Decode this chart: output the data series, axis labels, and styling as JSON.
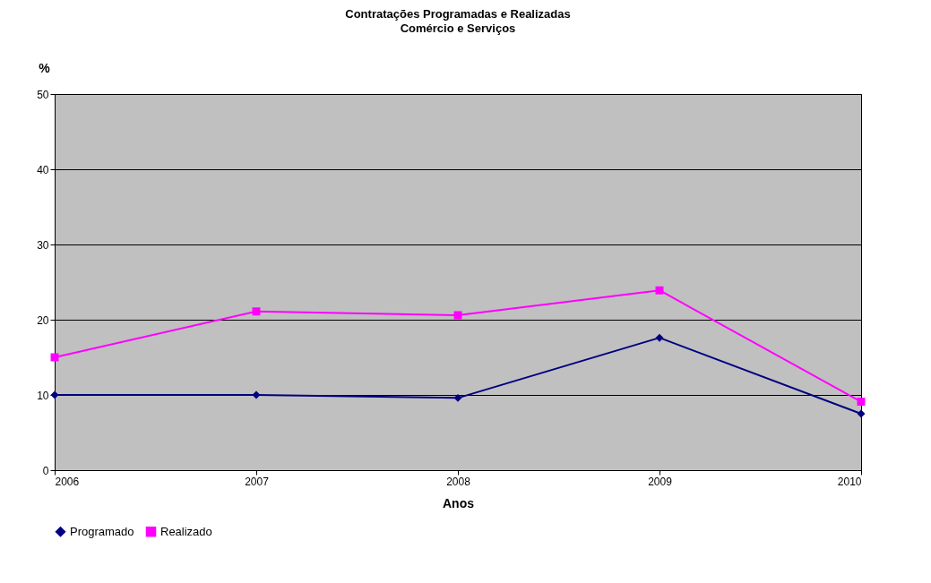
{
  "chart_data": {
    "type": "line",
    "title": "Contratações Programadas e Realizadas",
    "subtitle": "Comércio e Serviços",
    "xlabel": "Anos",
    "ylabel": "%",
    "x": [
      2006,
      2007,
      2008,
      2009,
      2010
    ],
    "series": [
      {
        "name": "Programado",
        "color": "#000080",
        "marker": "diamond",
        "values": [
          10.0,
          10.0,
          9.6,
          17.6,
          7.5
        ]
      },
      {
        "name": "Realizado",
        "color": "#ff00ff",
        "marker": "square",
        "values": [
          15.0,
          21.1,
          20.6,
          23.9,
          9.1
        ]
      }
    ],
    "xlim": [
      2006,
      2010
    ],
    "xticks": [
      2006,
      2007,
      2008,
      2009,
      2010
    ],
    "ylim": [
      0,
      50
    ],
    "yticks": [
      0,
      10,
      20,
      30,
      40,
      50
    ],
    "grid": "y",
    "legend": "bottom",
    "line_style": "solid"
  }
}
